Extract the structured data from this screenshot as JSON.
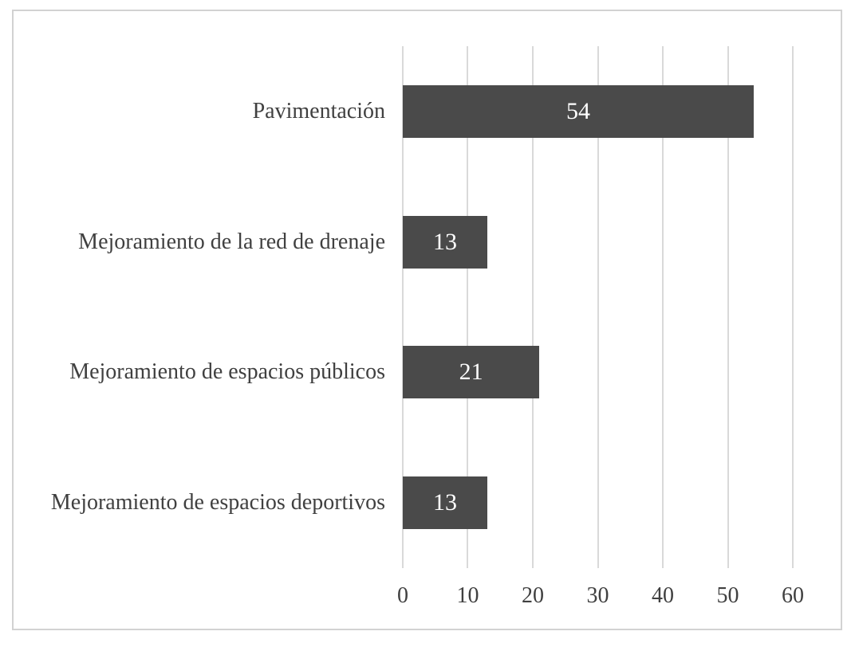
{
  "chart_data": {
    "type": "bar",
    "orientation": "horizontal",
    "title": "",
    "xlabel": "",
    "ylabel": "",
    "categories": [
      "Pavimentación",
      "Mejoramiento de la red de drenaje",
      "Mejoramiento de espacios públicos",
      "Mejoramiento de espacios deportivos"
    ],
    "values": [
      54,
      13,
      21,
      13
    ],
    "value_labels": [
      "54",
      "13",
      "21",
      "13"
    ],
    "x_ticks": [
      "0",
      "10",
      "20",
      "30",
      "40",
      "50",
      "60"
    ],
    "xlim": [
      0,
      60
    ],
    "grid": "vertical-gridlines-on",
    "legend": "none",
    "colors": {
      "bar_fill": "#4a4a4a",
      "bar_value_text": "#ffffff",
      "axis_text": "#404040",
      "gridline": "#d9d9d9",
      "frame_border": "#d2d2d2",
      "background": "#ffffff"
    }
  }
}
